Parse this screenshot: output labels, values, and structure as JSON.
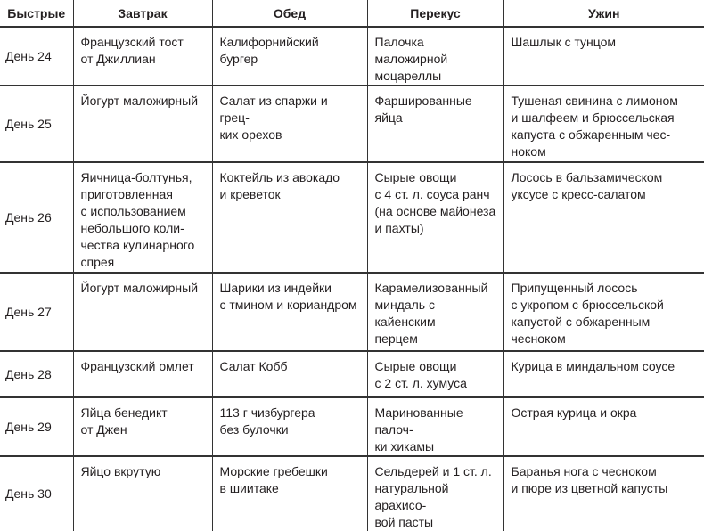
{
  "headers": [
    "Быстрые",
    "Завтрак",
    "Обед",
    "Перекус",
    "Ужин"
  ],
  "rows": [
    {
      "day": "День 24",
      "breakfast": "Французский тост\nот Джиллиан",
      "lunch": "Калифорнийский бургер",
      "snack": "Палочка маложирной\nмоцареллы",
      "dinner": "Шашлык с тунцом"
    },
    {
      "day": "День 25",
      "breakfast": "Йогурт маложирный",
      "lunch": "Салат из спаржи и грец-\nких орехов",
      "snack": "Фаршированные яйца",
      "dinner": "Тушеная свинина с лимоном\nи шалфеем и брюссельская\nкапуста с обжаренным чес-\nноком"
    },
    {
      "day": "День 26",
      "breakfast": "Яичница-болтунья,\nприготовленная\nс использованием\nнебольшого коли-\nчества кулинарного\nспрея",
      "lunch": "Коктейль из авокадо\nи креветок",
      "snack": "Сырые овощи\nс 4 ст. л. соуса ранч\n(на основе майонеза\nи пахты)",
      "dinner": "Лосось в бальзамическом\nуксусе с кресс-салатом"
    },
    {
      "day": "День 27",
      "breakfast": "Йогурт маложирный",
      "lunch": "Шарики из индейки\nс тмином и кориандром",
      "snack": "Карамелизованный\nминдаль с кайенским\nперцем",
      "dinner": "Припущенный лосось\nс укропом с брюссельской\nкапустой с обжаренным\nчесноком"
    },
    {
      "day": "День 28",
      "breakfast": "Французский омлет",
      "lunch": "Салат Кобб",
      "snack": "Сырые овощи\nс 2 ст. л. хумуса",
      "dinner": "Курица в миндальном соусе"
    },
    {
      "day": "День 29",
      "breakfast": "Яйца бенедикт\nот Джен",
      "lunch": "113 г чизбургера\nбез булочки",
      "snack": "Маринованные палоч-\nки хикамы",
      "dinner": "Острая курица и окра"
    },
    {
      "day": "День 30",
      "breakfast": "Яйцо вкрутую",
      "lunch": "Морские гребешки\nв шиитаке",
      "snack": "Сельдерей и 1 ст. л.\nнатуральной арахисо-\nвой пасты",
      "dinner": "Баранья нога с чесноком\nи пюре из цветной капусты"
    }
  ]
}
